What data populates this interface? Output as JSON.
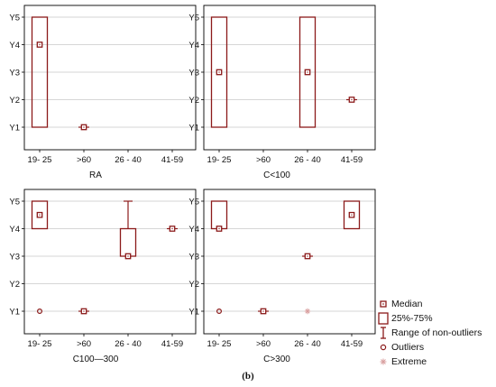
{
  "legend": {
    "median": "Median",
    "box": "25%-75%",
    "range": "Range of non-outliers",
    "outliers": "Outliers",
    "extreme": "Extreme"
  },
  "caption": "(b)",
  "colors": {
    "box": "#8b1a1a",
    "extreme": "#d9a0a0",
    "grid": "#c8c8c8"
  },
  "chart_data": [
    {
      "type": "boxplot",
      "title": "RA",
      "categories": [
        "19- 25",
        ">60",
        "26 - 40",
        "41-59"
      ],
      "y_ticks": [
        "Y1",
        "Y2",
        "Y3",
        "Y4",
        "Y5"
      ],
      "boxes": [
        {
          "category": "19- 25",
          "median": 4,
          "q1": 1,
          "q3": 5,
          "min": 1,
          "max": 5
        },
        {
          "category": ">60",
          "median": 1,
          "q1": 1,
          "q3": 1,
          "min": 1,
          "max": 1
        }
      ],
      "outliers": [],
      "extremes": []
    },
    {
      "type": "boxplot",
      "title": "C<100",
      "categories": [
        "19- 25",
        ">60",
        "26 - 40",
        "41-59"
      ],
      "y_ticks": [
        "Y1",
        "Y2",
        "Y3",
        "Y4",
        "Y5"
      ],
      "boxes": [
        {
          "category": "19- 25",
          "median": 3,
          "q1": 1,
          "q3": 5,
          "min": 1,
          "max": 5
        },
        {
          "category": "26 - 40",
          "median": 3,
          "q1": 1,
          "q3": 5,
          "min": 1,
          "max": 5
        },
        {
          "category": "41-59",
          "median": 2,
          "q1": 2,
          "q3": 2,
          "min": 2,
          "max": 2
        }
      ],
      "outliers": [],
      "extremes": []
    },
    {
      "type": "boxplot",
      "title": "C100—300",
      "categories": [
        "19- 25",
        ">60",
        "26 - 40",
        "41-59"
      ],
      "y_ticks": [
        "Y1",
        "Y2",
        "Y3",
        "Y4",
        "Y5"
      ],
      "boxes": [
        {
          "category": "19- 25",
          "median": 4.5,
          "q1": 4,
          "q3": 5,
          "min": 4,
          "max": 5
        },
        {
          "category": ">60",
          "median": 1,
          "q1": 1,
          "q3": 1,
          "min": 1,
          "max": 1
        },
        {
          "category": "26 - 40",
          "median": 3,
          "q1": 3,
          "q3": 4,
          "min": 3,
          "max": 5
        },
        {
          "category": "41-59",
          "median": 4,
          "q1": 4,
          "q3": 4,
          "min": 4,
          "max": 4
        }
      ],
      "outliers": [
        {
          "category": "19- 25",
          "value": 1
        }
      ],
      "extremes": []
    },
    {
      "type": "boxplot",
      "title": "C>300",
      "categories": [
        "19- 25",
        ">60",
        "26 - 40",
        "41-59"
      ],
      "y_ticks": [
        "Y1",
        "Y2",
        "Y3",
        "Y4",
        "Y5"
      ],
      "boxes": [
        {
          "category": "19- 25",
          "median": 4,
          "q1": 4,
          "q3": 5,
          "min": 4,
          "max": 5
        },
        {
          "category": ">60",
          "median": 1,
          "q1": 1,
          "q3": 1,
          "min": 1,
          "max": 1
        },
        {
          "category": "26 - 40",
          "median": 3,
          "q1": 3,
          "q3": 3,
          "min": 3,
          "max": 3
        },
        {
          "category": "41-59",
          "median": 4.5,
          "q1": 4,
          "q3": 5,
          "min": 4,
          "max": 5
        }
      ],
      "outliers": [
        {
          "category": "19- 25",
          "value": 1
        }
      ],
      "extremes": [
        {
          "category": "26 - 40",
          "value": 1
        }
      ]
    }
  ]
}
